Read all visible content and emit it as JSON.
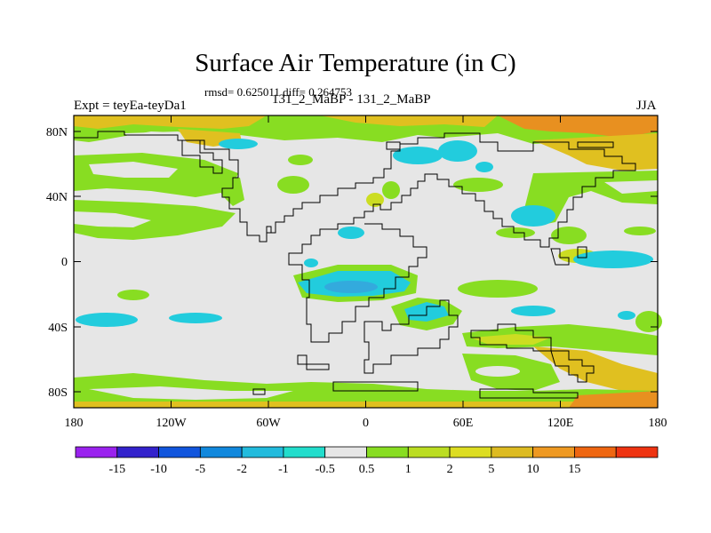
{
  "title": "Surface Air Temperature (in C)",
  "stats": "rmsd= 0.625011 diff= 0.264753",
  "expt": "Expt = teyEa-teyDa1",
  "subtitle": "131_2_MaBP - 131_2_MaBP",
  "season": "JJA",
  "map": {
    "x_ticks": [
      "180",
      "120W",
      "60W",
      "0",
      "60E",
      "120E",
      "180"
    ],
    "y_ticks": [
      "80N",
      "40N",
      "0",
      "40S",
      "80S"
    ],
    "colors": {
      "neutral": "#e6e6e6",
      "green": "#88dd22",
      "yellowgreen": "#ccdd22",
      "yellow": "#e0c020",
      "orange": "#e89020",
      "cyan": "#22ccdd",
      "lightblue": "#33aadd"
    }
  },
  "colorbar": {
    "colors": [
      "#9a22ee",
      "#3322cc",
      "#1155dd",
      "#1188dd",
      "#22bbdd",
      "#22ddcc",
      "#e6e6e6",
      "#88dd22",
      "#bbdd22",
      "#dddd22",
      "#ddbb22",
      "#ee9922",
      "#ee6611",
      "#ee3311"
    ],
    "labels": [
      "-15",
      "-10",
      "-5",
      "-2",
      "-1",
      "-0.5",
      "0.5",
      "1",
      "2",
      "5",
      "10",
      "15"
    ]
  }
}
